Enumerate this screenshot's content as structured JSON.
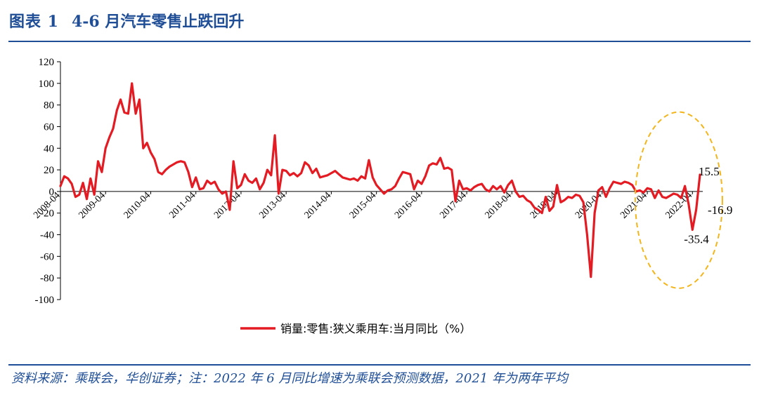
{
  "header": {
    "label": "图表 1",
    "title": "4-6 月汽车零售止跌回升"
  },
  "footer": {
    "source": "资料来源：乘联会，华创证券；注：2022 年 6 月同比增速为乘联会预测数据，2021 年为两年平均"
  },
  "colors": {
    "brand": "#1f4e96",
    "series": "#e41b23",
    "highlight": "#f2b51c",
    "axis": "#000000"
  },
  "chart_data": {
    "type": "line",
    "title": "",
    "xlabel": "",
    "ylabel": "",
    "ylim": [
      -100,
      120
    ],
    "yticks": [
      120,
      100,
      80,
      60,
      40,
      20,
      0,
      -20,
      -40,
      -60,
      -80,
      -100
    ],
    "grid": false,
    "legend_position": "bottom",
    "x_tick_labels": [
      "2008-04",
      "2009-04",
      "2010-04",
      "2011-04",
      "2012-04",
      "2013-04",
      "2014-04",
      "2015-04",
      "2016-04",
      "2017-04",
      "2018-04",
      "2019-04",
      "2020-04",
      "2021-04",
      "2022-04"
    ],
    "series": [
      {
        "name": "销量:零售:狭义乘用车:当月同比（%）",
        "x": [
          "2008-04",
          "2008-05",
          "2008-06",
          "2008-07",
          "2008-08",
          "2008-09",
          "2008-10",
          "2008-11",
          "2008-12",
          "2009-01",
          "2009-02",
          "2009-03",
          "2009-04",
          "2009-05",
          "2009-06",
          "2009-07",
          "2009-08",
          "2009-09",
          "2009-10",
          "2009-11",
          "2009-12",
          "2010-01",
          "2010-02",
          "2010-03",
          "2010-04",
          "2010-05",
          "2010-06",
          "2010-07",
          "2010-08",
          "2010-09",
          "2010-10",
          "2010-11",
          "2010-12",
          "2011-01",
          "2011-02",
          "2011-03",
          "2011-04",
          "2011-05",
          "2011-06",
          "2011-07",
          "2011-08",
          "2011-09",
          "2011-10",
          "2011-11",
          "2011-12",
          "2012-01",
          "2012-02",
          "2012-03",
          "2012-04",
          "2012-05",
          "2012-06",
          "2012-07",
          "2012-08",
          "2012-09",
          "2012-10",
          "2012-11",
          "2012-12",
          "2013-01",
          "2013-02",
          "2013-03",
          "2013-04",
          "2013-05",
          "2013-06",
          "2013-07",
          "2013-08",
          "2013-09",
          "2013-10",
          "2013-11",
          "2013-12",
          "2014-01",
          "2014-02",
          "2014-03",
          "2014-04",
          "2014-05",
          "2014-06",
          "2014-07",
          "2014-08",
          "2014-09",
          "2014-10",
          "2014-11",
          "2014-12",
          "2015-01",
          "2015-02",
          "2015-03",
          "2015-04",
          "2015-05",
          "2015-06",
          "2015-07",
          "2015-08",
          "2015-09",
          "2015-10",
          "2015-11",
          "2015-12",
          "2016-01",
          "2016-02",
          "2016-03",
          "2016-04",
          "2016-05",
          "2016-06",
          "2016-07",
          "2016-08",
          "2016-09",
          "2016-10",
          "2016-11",
          "2016-12",
          "2017-01",
          "2017-02",
          "2017-03",
          "2017-04",
          "2017-05",
          "2017-06",
          "2017-07",
          "2017-08",
          "2017-09",
          "2017-10",
          "2017-11",
          "2017-12",
          "2018-01",
          "2018-02",
          "2018-03",
          "2018-04",
          "2018-05",
          "2018-06",
          "2018-07",
          "2018-08",
          "2018-09",
          "2018-10",
          "2018-11",
          "2018-12",
          "2019-01",
          "2019-02",
          "2019-03",
          "2019-04",
          "2019-05",
          "2019-06",
          "2019-07",
          "2019-08",
          "2019-09",
          "2019-10",
          "2019-11",
          "2019-12",
          "2020-01",
          "2020-02",
          "2020-03",
          "2020-04",
          "2020-05",
          "2020-06",
          "2020-07",
          "2020-08",
          "2020-09",
          "2020-10",
          "2020-11",
          "2020-12",
          "2021-01",
          "2021-02",
          "2021-03",
          "2021-04",
          "2021-05",
          "2021-06",
          "2021-07",
          "2021-08",
          "2021-09",
          "2021-10",
          "2021-11",
          "2021-12",
          "2022-01",
          "2022-02",
          "2022-03",
          "2022-04",
          "2022-05",
          "2022-06"
        ],
        "values": [
          5,
          14,
          12,
          7,
          -5,
          -3,
          8,
          -7,
          12,
          -3,
          28,
          18,
          40,
          50,
          58,
          75,
          85,
          73,
          72,
          100,
          72,
          85,
          40,
          45,
          36,
          30,
          18,
          16,
          20,
          23,
          25,
          27,
          28,
          27,
          18,
          4,
          13,
          2,
          3,
          10,
          7,
          9,
          2,
          -2,
          0,
          -17,
          28,
          3,
          6,
          16,
          10,
          8,
          12,
          2,
          8,
          20,
          15,
          52,
          -2,
          20,
          19,
          15,
          17,
          14,
          17,
          27,
          24,
          17,
          21,
          13,
          14,
          15,
          17,
          19,
          16,
          13,
          12,
          11,
          12,
          10,
          14,
          12,
          29,
          13,
          6,
          2,
          -2,
          1,
          2,
          5,
          12,
          18,
          17,
          16,
          2,
          10,
          7,
          14,
          24,
          26,
          25,
          31,
          21,
          22,
          20,
          -9,
          10,
          2,
          3,
          1,
          4,
          6,
          7,
          2,
          0,
          5,
          2,
          5,
          -1,
          6,
          10,
          0,
          -5,
          -4,
          -8,
          -10,
          -15,
          -17,
          -20,
          -5,
          -18,
          -14,
          6,
          -10,
          -8,
          -5,
          -6,
          -3,
          -4,
          -10,
          -40,
          -79,
          -20,
          1,
          4,
          -5,
          3,
          9,
          8,
          7,
          9,
          8,
          6,
          0,
          1,
          -1,
          3,
          2,
          -6,
          1,
          -5,
          -6,
          -4,
          -2,
          -3,
          -6,
          5,
          -11.9,
          -35.4,
          -16.9,
          15.5
        ]
      }
    ],
    "annotations": [
      "15.5",
      "-16.9",
      "-35.4"
    ]
  }
}
